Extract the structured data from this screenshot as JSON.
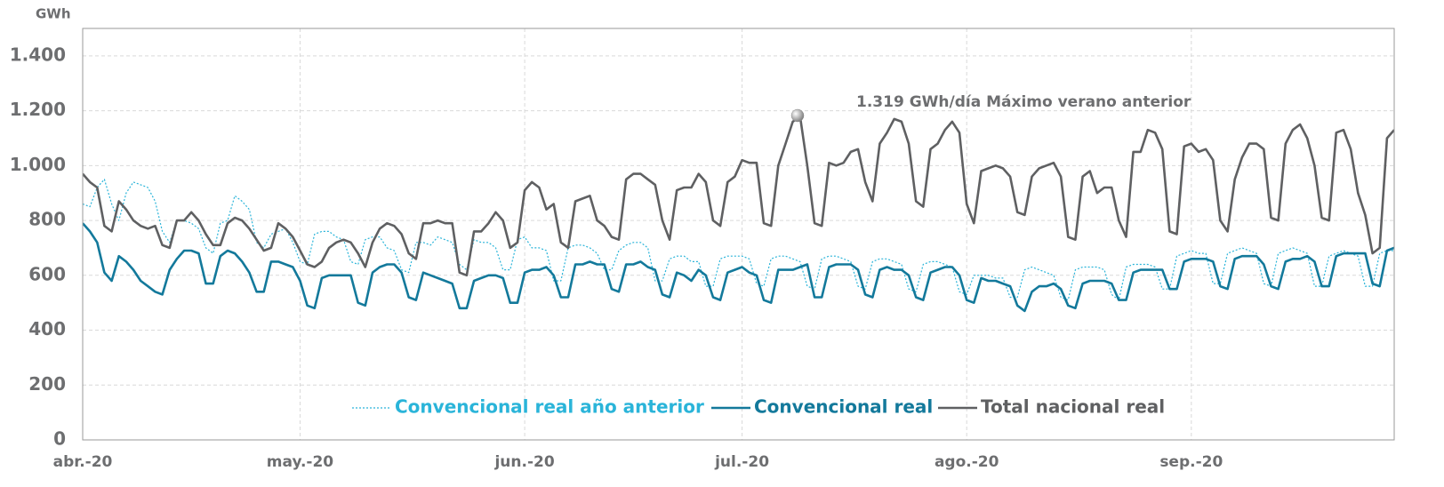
{
  "chart_data": {
    "type": "line",
    "y_label": "GWh",
    "annotation": "1.319 GWh/día Máximo verano anterior",
    "grid": true,
    "legend_position": "bottom",
    "xlim": [
      0,
      181
    ],
    "xticks": [
      {
        "value": 0,
        "label": "abr.-20"
      },
      {
        "value": 30,
        "label": "may.-20"
      },
      {
        "value": 61,
        "label": "jun.-20"
      },
      {
        "value": 91,
        "label": "jul.-20"
      },
      {
        "value": 122,
        "label": "ago.-20"
      },
      {
        "value": 153,
        "label": "sep.-20"
      }
    ],
    "ylim": [
      0,
      1500
    ],
    "yticks": [
      0,
      200,
      400,
      600,
      800,
      {
        "value": 1000,
        "label": "1.000"
      },
      {
        "value": 1200,
        "label": "1.200"
      },
      {
        "value": 1400,
        "label": "1.400"
      }
    ],
    "series": [
      {
        "name": "Convencional real año anterior",
        "color": "#2ab4d9",
        "dash": true,
        "values": [
          860,
          850,
          920,
          950,
          860,
          800,
          900,
          940,
          930,
          920,
          870,
          760,
          720,
          800,
          800,
          790,
          770,
          700,
          680,
          790,
          800,
          890,
          870,
          840,
          720,
          700,
          750,
          760,
          770,
          720,
          650,
          640,
          750,
          760,
          760,
          740,
          730,
          650,
          640,
          730,
          740,
          740,
          700,
          690,
          620,
          610,
          720,
          720,
          710,
          740,
          730,
          720,
          640,
          620,
          730,
          720,
          720,
          700,
          620,
          620,
          730,
          740,
          700,
          700,
          690,
          580,
          580,
          700,
          710,
          710,
          700,
          680,
          620,
          620,
          690,
          710,
          720,
          720,
          700,
          580,
          580,
          660,
          670,
          670,
          650,
          650,
          560,
          560,
          660,
          670,
          670,
          670,
          660,
          570,
          560,
          660,
          670,
          670,
          660,
          650,
          560,
          550,
          660,
          670,
          670,
          660,
          650,
          560,
          550,
          650,
          660,
          660,
          650,
          640,
          550,
          540,
          640,
          650,
          650,
          640,
          630,
          540,
          530,
          600,
          600,
          600,
          590,
          590,
          520,
          520,
          620,
          630,
          620,
          610,
          600,
          520,
          510,
          620,
          630,
          630,
          630,
          620,
          530,
          510,
          630,
          640,
          640,
          640,
          630,
          550,
          550,
          670,
          680,
          690,
          680,
          680,
          570,
          570,
          680,
          690,
          700,
          690,
          680,
          570,
          560,
          680,
          690,
          700,
          690,
          680,
          560,
          560,
          670,
          680,
          690,
          680,
          670,
          560,
          560,
          680,
          690,
          690
        ]
      },
      {
        "name": "Convencional real",
        "color": "#13799b",
        "dash": false,
        "values": [
          790,
          760,
          720,
          610,
          580,
          670,
          650,
          620,
          580,
          560,
          540,
          530,
          620,
          660,
          690,
          690,
          680,
          570,
          570,
          670,
          690,
          680,
          650,
          610,
          540,
          540,
          650,
          650,
          640,
          630,
          580,
          490,
          480,
          590,
          600,
          600,
          600,
          600,
          500,
          490,
          610,
          630,
          640,
          640,
          610,
          520,
          510,
          610,
          600,
          590,
          580,
          570,
          480,
          480,
          580,
          590,
          600,
          600,
          590,
          500,
          500,
          610,
          620,
          620,
          630,
          600,
          520,
          520,
          640,
          640,
          650,
          640,
          640,
          550,
          540,
          640,
          640,
          650,
          630,
          620,
          530,
          520,
          610,
          600,
          580,
          620,
          600,
          520,
          510,
          610,
          620,
          630,
          610,
          600,
          510,
          500,
          620,
          620,
          620,
          630,
          640,
          520,
          520,
          630,
          640,
          640,
          640,
          620,
          530,
          520,
          620,
          630,
          620,
          620,
          600,
          520,
          510,
          610,
          620,
          630,
          630,
          600,
          510,
          500,
          590,
          580,
          580,
          570,
          560,
          490,
          470,
          540,
          560,
          560,
          570,
          550,
          490,
          480,
          570,
          580,
          580,
          580,
          570,
          510,
          510,
          610,
          620,
          620,
          620,
          620,
          550,
          550,
          650,
          660,
          660,
          660,
          650,
          560,
          550,
          660,
          670,
          670,
          670,
          640,
          560,
          550,
          650,
          660,
          660,
          670,
          650,
          560,
          560,
          670,
          680,
          680,
          680,
          680,
          570,
          560,
          690,
          700
        ]
      },
      {
        "name": "Total nacional real",
        "color": "#5f6062",
        "dash": false,
        "values": [
          970,
          940,
          920,
          780,
          760,
          870,
          840,
          800,
          780,
          770,
          780,
          710,
          700,
          800,
          800,
          830,
          800,
          750,
          710,
          710,
          790,
          810,
          800,
          770,
          730,
          690,
          700,
          790,
          770,
          740,
          690,
          640,
          630,
          650,
          700,
          720,
          730,
          720,
          680,
          630,
          720,
          770,
          790,
          780,
          750,
          680,
          660,
          790,
          790,
          800,
          790,
          790,
          610,
          600,
          760,
          760,
          790,
          830,
          800,
          700,
          720,
          910,
          940,
          920,
          840,
          860,
          720,
          700,
          870,
          880,
          890,
          800,
          780,
          740,
          730,
          950,
          970,
          970,
          950,
          930,
          800,
          730,
          910,
          920,
          920,
          970,
          940,
          800,
          780,
          940,
          960,
          1020,
          1010,
          1010,
          790,
          780,
          1000,
          1080,
          1160,
          1180,
          1000,
          790,
          780,
          1010,
          1000,
          1010,
          1050,
          1060,
          940,
          870,
          1080,
          1120,
          1170,
          1160,
          1080,
          870,
          850,
          1060,
          1080,
          1130,
          1160,
          1120,
          860,
          790,
          980,
          990,
          1000,
          990,
          960,
          830,
          820,
          960,
          990,
          1000,
          1010,
          960,
          740,
          730,
          960,
          980,
          900,
          920,
          920,
          800,
          740,
          1050,
          1050,
          1130,
          1120,
          1060,
          760,
          750,
          1070,
          1080,
          1050,
          1060,
          1020,
          800,
          760,
          950,
          1030,
          1080,
          1080,
          1060,
          810,
          800,
          1080,
          1130,
          1150,
          1100,
          1000,
          810,
          800,
          1120,
          1130,
          1060,
          900,
          820,
          680,
          700,
          1100,
          1130
        ]
      }
    ]
  }
}
